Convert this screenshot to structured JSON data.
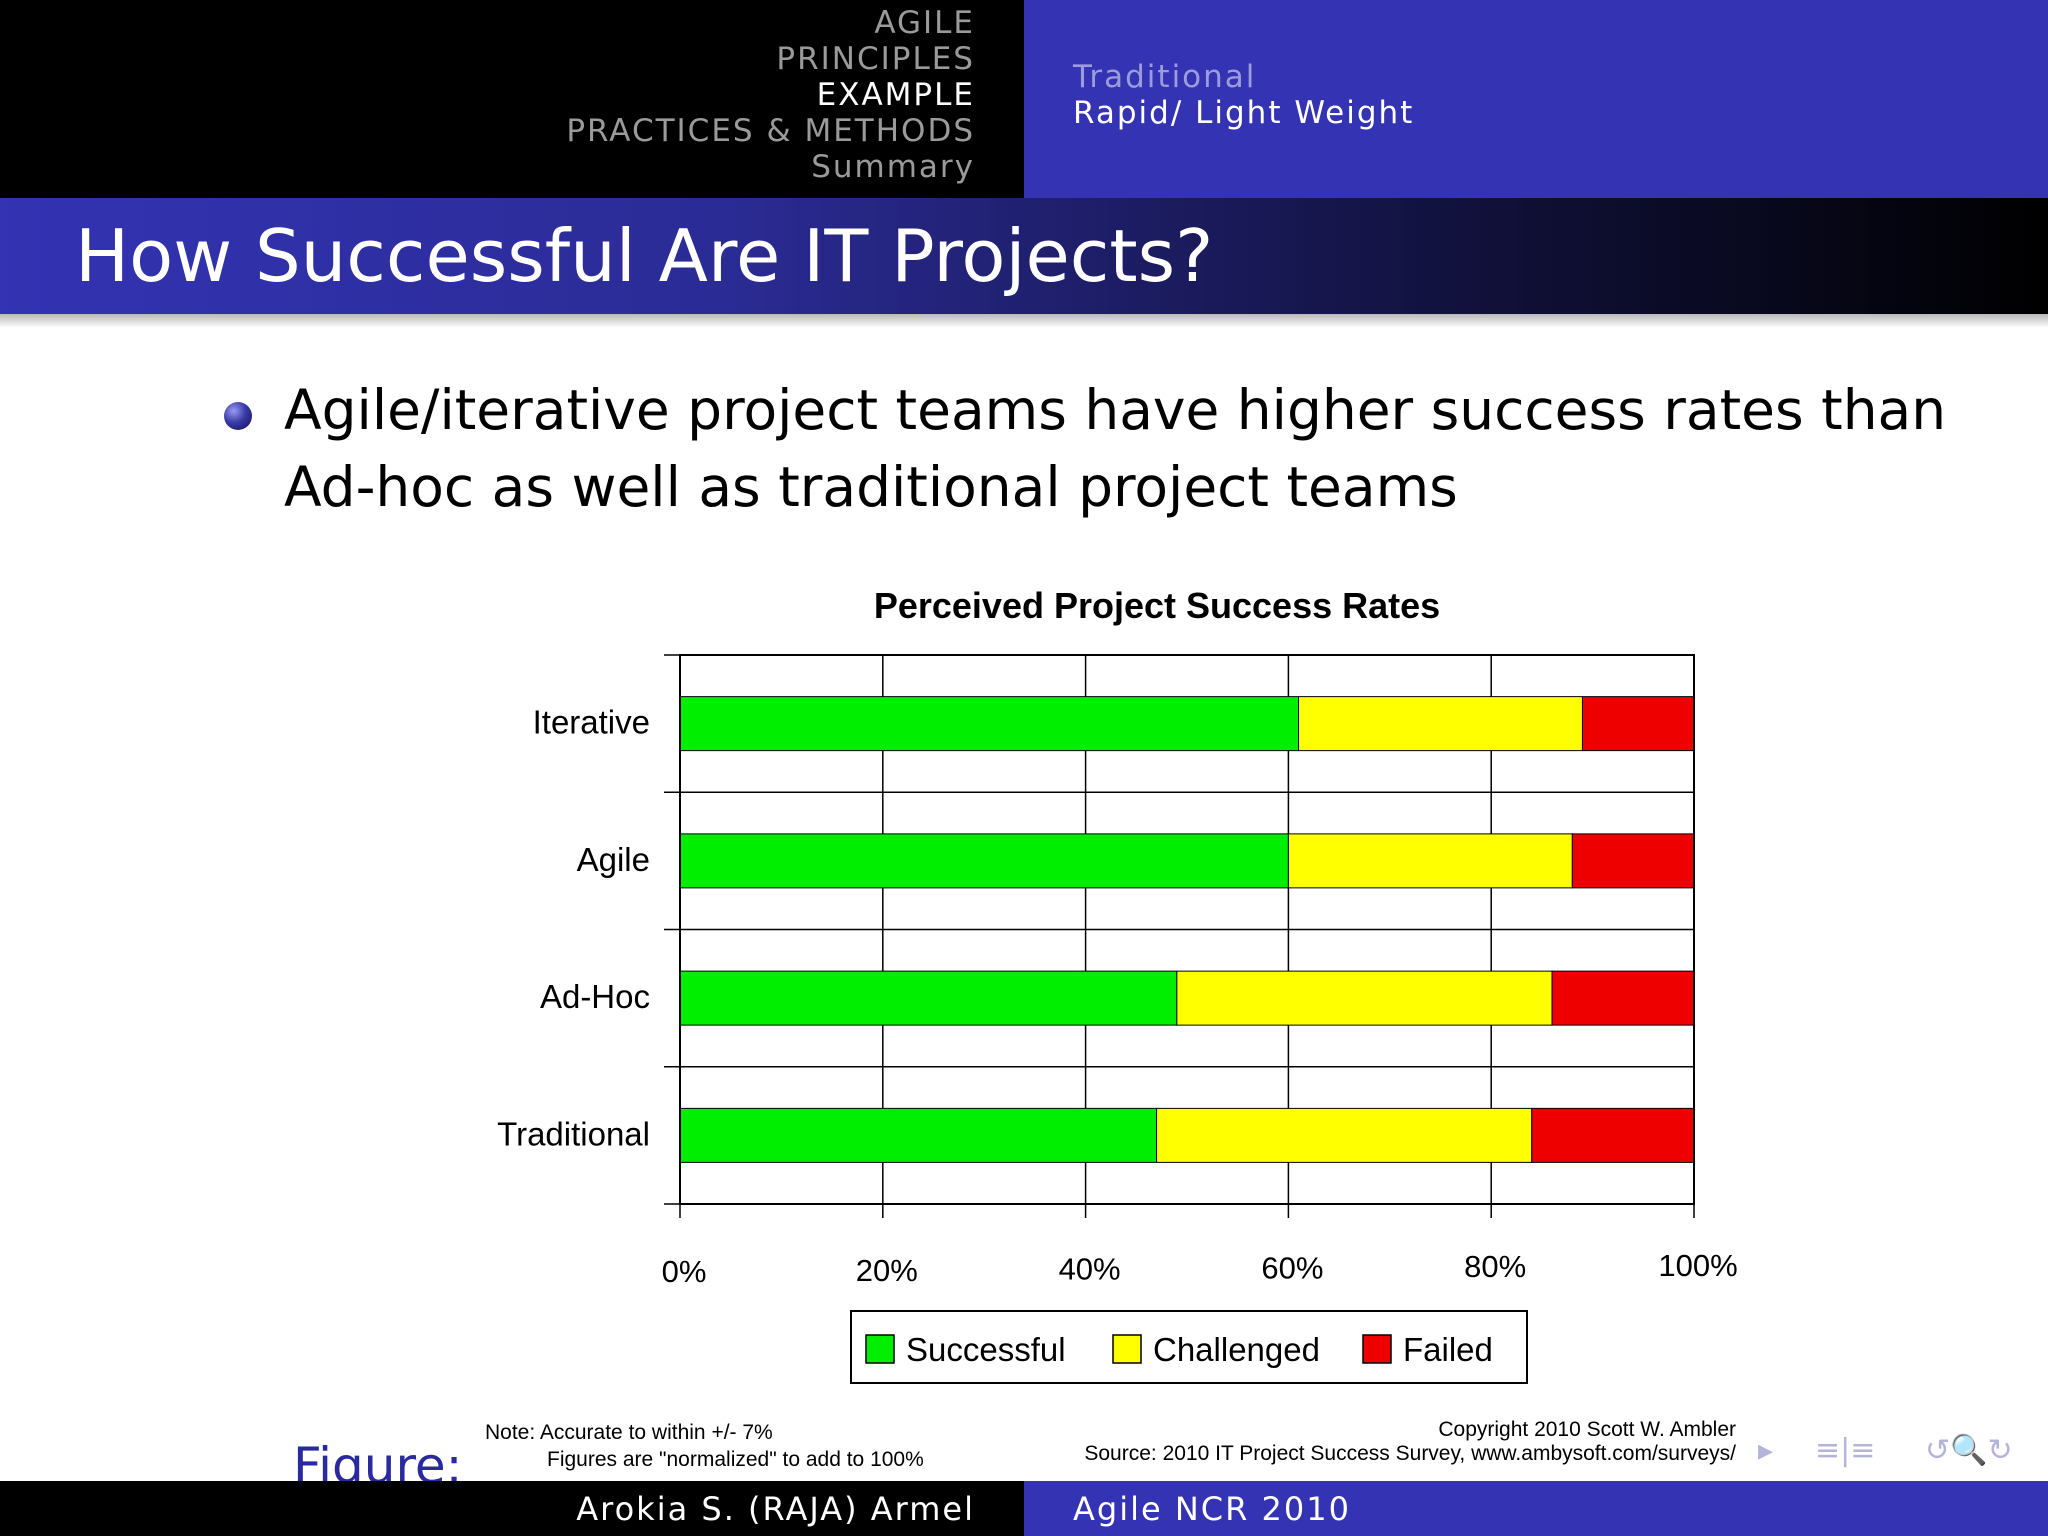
{
  "header": {
    "nav": [
      "AGILE",
      "PRINCIPLES",
      "EXAMPLE",
      "PRACTICES & METHODS",
      "Summary"
    ],
    "active_nav": "EXAMPLE",
    "subsections": [
      "Traditional",
      "Rapid/ Light Weight"
    ],
    "active_subsection": "Rapid/ Light Weight",
    "colors": {
      "left_bg": "#000000",
      "right_bg": "#3333b3",
      "inactive": "#9a9a9a",
      "sub_inactive": "#9c9cdc"
    }
  },
  "slide": {
    "title": "How Successful Are IT Projects?",
    "bullet_lines": [
      "Agile/iterative project teams have higher success rates than",
      "Ad-hoc as well as traditional project teams"
    ],
    "figure_label": "Figure:"
  },
  "chart_data": {
    "type": "bar",
    "orientation": "horizontal",
    "stacked": true,
    "title": "Perceived Project Success Rates",
    "categories": [
      "Iterative",
      "Agile",
      "Ad-Hoc",
      "Traditional"
    ],
    "series": [
      {
        "name": "Successful",
        "color": "#00ee00",
        "values": [
          61,
          60,
          49,
          47
        ]
      },
      {
        "name": "Challenged",
        "color": "#ffff00",
        "values": [
          28,
          28,
          37,
          37
        ]
      },
      {
        "name": "Failed",
        "color": "#ee0000",
        "values": [
          11,
          12,
          14,
          16
        ]
      }
    ],
    "x_ticks": [
      "0%",
      "20%",
      "40%",
      "60%",
      "80%",
      "100%"
    ],
    "xlim": [
      0,
      100
    ],
    "xlabel": "",
    "ylabel": "",
    "grid": true,
    "legend_position": "bottom"
  },
  "notes": {
    "note_line1": "Note: Accurate to within +/- 7%",
    "note_line2": "Figures are \"normalized\" to add to 100%",
    "copyright": "Copyright 2010 Scott W. Ambler",
    "source": "Source: 2010 IT Project Success Survey, www.ambysoft.com/surveys/"
  },
  "nav_symbols": {
    "arrow": "▸",
    "section": "≡|≡",
    "search": "↺🔍↻",
    "icons": [
      "arrow-right-icon",
      "section-nav-icon",
      "undo-icon",
      "search-icon",
      "redo-icon"
    ]
  },
  "footer": {
    "author": "Arokia S. (RAJA) Armel",
    "event": "Agile NCR 2010"
  }
}
